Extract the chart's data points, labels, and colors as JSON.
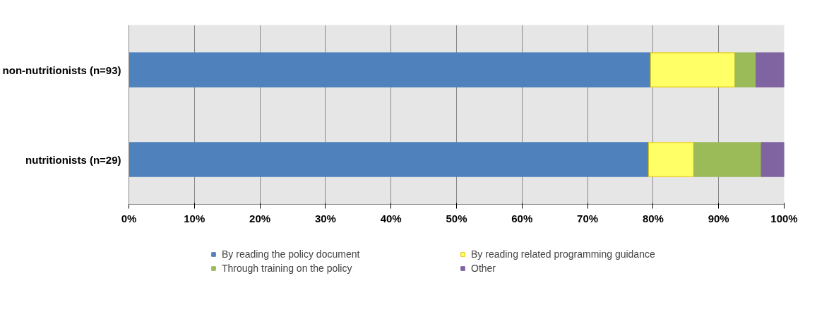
{
  "chart_data": {
    "type": "bar",
    "orientation": "horizontal",
    "stacked": true,
    "categories": [
      "non-nutritionists (n=93)",
      "nutritionists (n=29)"
    ],
    "series": [
      {
        "name": "By reading the policy document",
        "color": "#4f81bd",
        "values": [
          79.6,
          79.3
        ]
      },
      {
        "name": "By reading related programming guidance",
        "color": "#ffff66",
        "values": [
          12.9,
          6.9
        ]
      },
      {
        "name": "Through training on the policy",
        "color": "#9bbb59",
        "values": [
          3.2,
          10.3
        ]
      },
      {
        "name": "Other",
        "color": "#8064a2",
        "values": [
          4.3,
          3.5
        ]
      }
    ],
    "xlim": [
      0,
      100
    ],
    "xticks": [
      {
        "value": 0,
        "label": "0%"
      },
      {
        "value": 10,
        "label": "10%"
      },
      {
        "value": 20,
        "label": "20%"
      },
      {
        "value": 30,
        "label": "30%"
      },
      {
        "value": 40,
        "label": "40%"
      },
      {
        "value": 50,
        "label": "50%"
      },
      {
        "value": 60,
        "label": "60%"
      },
      {
        "value": 70,
        "label": "70%"
      },
      {
        "value": 80,
        "label": "80%"
      },
      {
        "value": 90,
        "label": "90%"
      },
      {
        "value": 100,
        "label": "100%"
      }
    ],
    "grid": "x",
    "legend": "bottom"
  }
}
